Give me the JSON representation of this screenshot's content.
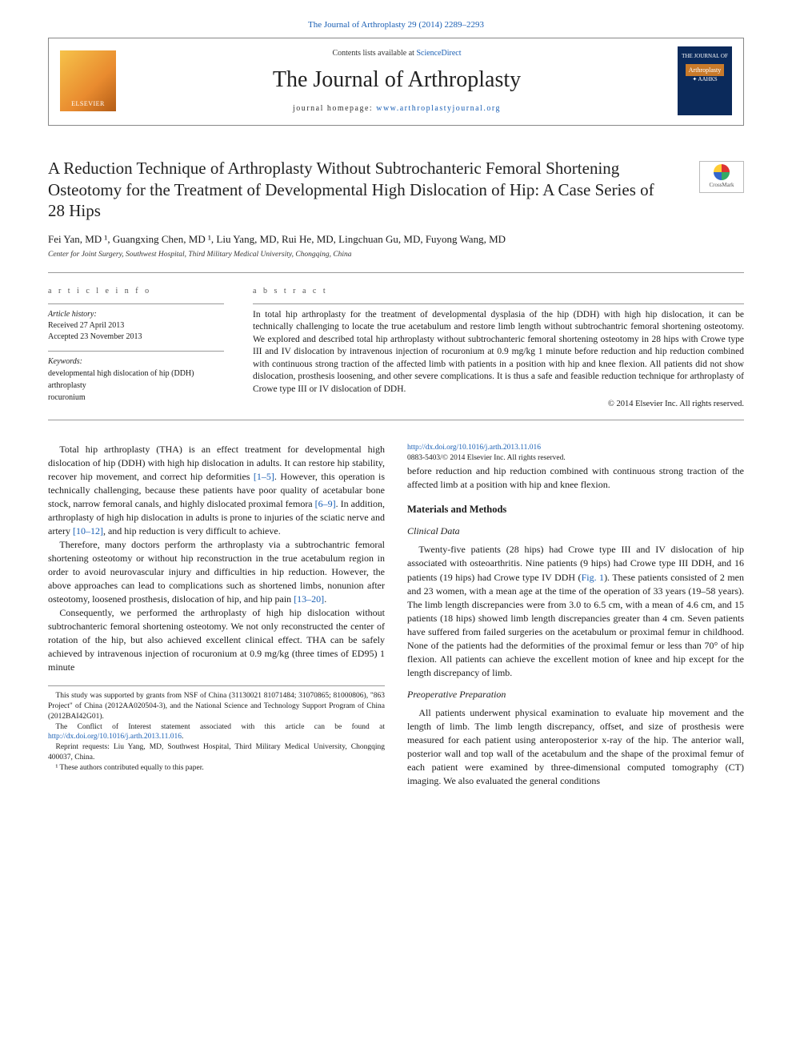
{
  "top_citation": "The Journal of Arthroplasty 29 (2014) 2289–2293",
  "masthead": {
    "publisher_logo": "ELSEVIER",
    "contents_prefix": "Contents lists available at ",
    "contents_link": "ScienceDirect",
    "journal_name": "The Journal of Arthroplasty",
    "homepage_prefix": "journal homepage: ",
    "homepage_url": "www.arthroplastyjournal.org",
    "cover_top": "THE JOURNAL OF",
    "cover_title": "Arthroplasty",
    "cover_sub": "✦ AAHKS"
  },
  "article": {
    "title": "A Reduction Technique of Arthroplasty Without Subtrochanteric Femoral Shortening Osteotomy for the Treatment of Developmental High Dislocation of Hip: A Case Series of 28 Hips",
    "crossmark": "CrossMark",
    "authors": "Fei Yan, MD ¹, Guangxing Chen, MD ¹, Liu Yang, MD, Rui He, MD, Lingchuan Gu, MD, Fuyong Wang, MD",
    "affiliation": "Center for Joint Surgery, Southwest Hospital, Third Military Medical University, Chongqing, China"
  },
  "info": {
    "section_label": "a r t i c l e   i n f o",
    "history_label": "Article history:",
    "received": "Received 27 April 2013",
    "accepted": "Accepted 23 November 2013",
    "keywords_label": "Keywords:",
    "keywords": [
      "developmental high dislocation of hip (DDH)",
      "arthroplasty",
      "rocuronium"
    ]
  },
  "abstract": {
    "section_label": "a b s t r a c t",
    "text": "In total hip arthroplasty for the treatment of developmental dysplasia of the hip (DDH) with high hip dislocation, it can be technically challenging to locate the true acetabulum and restore limb length without subtrochantric femoral shortening osteotomy. We explored and described total hip arthroplasty without subtrochanteric femoral shortening osteotomy in 28 hips with Crowe type III and IV dislocation by intravenous injection of rocuronium at 0.9 mg/kg 1 minute before reduction and hip reduction combined with continuous strong traction of the affected limb with patients in a position with hip and knee flexion. All patients did not show dislocation, prosthesis loosening, and other severe complications. It is thus a safe and feasible reduction technique for arthroplasty of Crowe type III or IV dislocation of DDH.",
    "copyright": "© 2014 Elsevier Inc. All rights reserved."
  },
  "body": {
    "p1a": "Total hip arthroplasty (THA) is an effect treatment for developmental high dislocation of hip (DDH) with high hip dislocation in adults. It can restore hip stability, recover hip movement, and correct hip deformities ",
    "c1": "[1–5]",
    "p1b": ". However, this operation is technically challenging, because these patients have poor quality of acetabular bone stock, narrow femoral canals, and highly dislocated proximal femora ",
    "c2": "[6–9]",
    "p1c": ". In addition, arthroplasty of high hip dislocation in adults is prone to injuries of the sciatic nerve and artery ",
    "c3": "[10–12]",
    "p1d": ", and hip reduction is very difficult to achieve.",
    "p2a": "Therefore, many doctors perform the arthroplasty via a subtrochantric femoral shortening osteotomy or without hip reconstruction in the true acetabulum region in order to avoid neurovascular injury and difficulties in hip reduction. However, the above approaches can lead to complications such as shortened limbs, nonunion after osteotomy, loosened prosthesis, dislocation of hip, and hip pain ",
    "c4": "[13–20]",
    "p2b": ".",
    "p3": "Consequently, we performed the arthroplasty of high hip dislocation without subtrochanteric femoral shortening osteotomy. We not only reconstructed the center of rotation of the hip, but also achieved excellent clinical effect. THA can be safely achieved by intravenous injection of rocuronium at 0.9 mg/kg (three times of ED95) 1 minute",
    "p3cont": "before reduction and hip reduction combined with continuous strong traction of the affected limb at a position with hip and knee flexion.",
    "h_mm": "Materials and Methods",
    "h_cd": "Clinical Data",
    "p4a": "Twenty-five patients (28 hips) had Crowe type III and IV dislocation of hip associated with osteoarthritis. Nine patients (9 hips) had Crowe type III DDH, and 16 patients (19 hips) had Crowe type IV DDH (",
    "c5": "Fig. 1",
    "p4b": "). These patients consisted of 2 men and 23 women, with a mean age at the time of the operation of 33 years (19–58 years). The limb length discrepancies were from 3.0 to 6.5 cm, with a mean of 4.6 cm, and 15 patients (18 hips) showed limb length discrepancies greater than 4 cm. Seven patients have suffered from failed surgeries on the acetabulum or proximal femur in childhood. None of the patients had the deformities of the proximal femur or less than 70° of hip flexion. All patients can achieve the excellent motion of knee and hip except for the length discrepancy of limb.",
    "h_pp": "Preoperative Preparation",
    "p5": "All patients underwent physical examination to evaluate hip movement and the length of limb. The limb length discrepancy, offset, and size of prosthesis were measured for each patient using anteroposterior x-ray of the hip. The anterior wall, posterior wall and top wall of the acetabulum and the shape of the proximal femur of each patient were examined by three-dimensional computed tomography (CT) imaging. We also evaluated the general conditions"
  },
  "footnotes": {
    "f1": "This study was supported by grants from NSF of China (31130021 81071484; 31070865; 81000806), \"863 Project\" of China (2012AA020504-3), and the National Science and Technology Support Program of China (2012BAI42G01).",
    "f2a": "The Conflict of Interest statement associated with this article can be found at ",
    "f2link": "http://dx.doi.org/10.1016/j.arth.2013.11.016",
    "f2b": ".",
    "f3": "Reprint requests: Liu Yang, MD, Southwest Hospital, Third Military Medical University, Chongqing 400037, China.",
    "f4": "¹ These authors contributed equally to this paper."
  },
  "doi": {
    "link": "http://dx.doi.org/10.1016/j.arth.2013.11.016",
    "issn": "0883-5403/© 2014 Elsevier Inc. All rights reserved."
  },
  "colors": {
    "link": "#1a5fb4",
    "text": "#1a1a1a",
    "rule": "#999999"
  }
}
